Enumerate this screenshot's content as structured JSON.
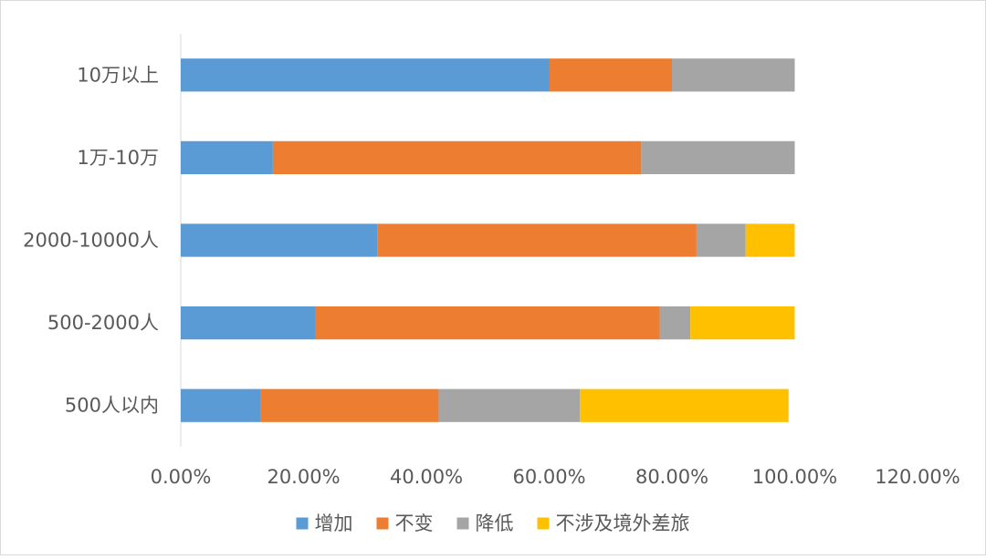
{
  "chart_data": {
    "type": "bar",
    "orientation": "horizontal",
    "stacked": true,
    "title": "",
    "xlabel": "",
    "ylabel": "",
    "categories": [
      "10万以上",
      "1万-10万",
      "2000-10000人",
      "500-2000人",
      "500人以内"
    ],
    "series": [
      {
        "name": "增加",
        "color": "#5b9bd5",
        "values": [
          0.6,
          0.15,
          0.32,
          0.22,
          0.13
        ]
      },
      {
        "name": "不变",
        "color": "#ed7d31",
        "values": [
          0.2,
          0.6,
          0.52,
          0.56,
          0.29
        ]
      },
      {
        "name": "降低",
        "color": "#a5a5a5",
        "values": [
          0.2,
          0.25,
          0.08,
          0.05,
          0.23
        ]
      },
      {
        "name": "不涉及境外差旅",
        "color": "#ffc000",
        "values": [
          0.0,
          0.0,
          0.08,
          0.17,
          0.34
        ]
      }
    ],
    "xlim": [
      0,
      1.2
    ],
    "xticks": [
      "0.00%",
      "20.00%",
      "40.00%",
      "60.00%",
      "80.00%",
      "100.00%",
      "120.00%"
    ],
    "grid": false,
    "legend_position": "bottom"
  }
}
